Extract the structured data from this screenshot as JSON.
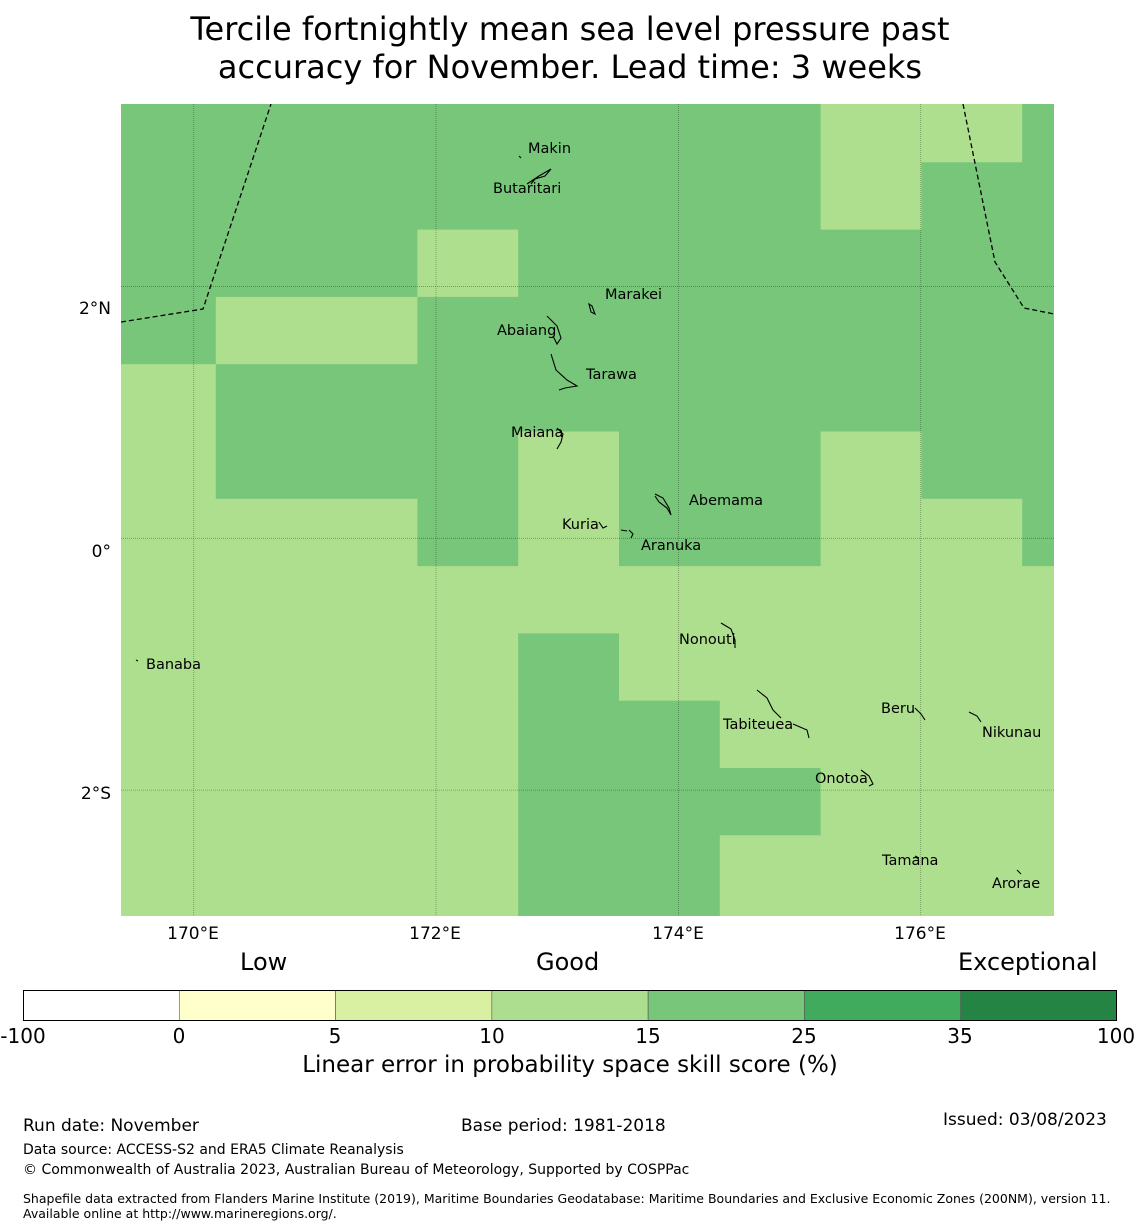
{
  "title": {
    "line1": "Tercile fortnightly mean sea level pressure past",
    "line2": "accuracy for November. Lead time: 3 weeks"
  },
  "map": {
    "lon_range": [
      169.4,
      177.1
    ],
    "lat_range": [
      -3.0,
      3.45
    ],
    "grid_step_deg": 0.83,
    "gridlines_lon": [
      170,
      172,
      174,
      176
    ],
    "gridlines_lat": [
      2,
      0,
      -2
    ],
    "x_tick_labels": [
      "170°E",
      "172°E",
      "174°E",
      "176°E"
    ],
    "y_tick_labels": [
      "2°N",
      "0°",
      "2°S"
    ],
    "colors": {
      "class_10_15": "#addf8e",
      "class_15_25": "#78c67a",
      "line": "#000000"
    },
    "cells_note": "1 = 15-25 skill class, 0 = 10-15 skill class; rows from north to south",
    "cells": [
      [
        1,
        1,
        1,
        1,
        1,
        1,
        1,
        0,
        0,
        1
      ],
      [
        1,
        1,
        1,
        1,
        1,
        1,
        1,
        0,
        1,
        1
      ],
      [
        1,
        1,
        1,
        0,
        1,
        1,
        1,
        1,
        1,
        1
      ],
      [
        1,
        0,
        0,
        1,
        1,
        1,
        1,
        1,
        1,
        1
      ],
      [
        0,
        1,
        1,
        1,
        1,
        1,
        1,
        1,
        1,
        1
      ],
      [
        0,
        1,
        1,
        1,
        0,
        1,
        1,
        0,
        1,
        1
      ],
      [
        0,
        0,
        0,
        1,
        0,
        1,
        1,
        0,
        0,
        1
      ],
      [
        0,
        0,
        0,
        0,
        0,
        0,
        0,
        0,
        0,
        0
      ],
      [
        0,
        0,
        0,
        0,
        1,
        0,
        0,
        0,
        0,
        0
      ],
      [
        0,
        0,
        0,
        0,
        1,
        1,
        0,
        0,
        0,
        0
      ],
      [
        0,
        0,
        0,
        0,
        1,
        1,
        1,
        0,
        0,
        0
      ],
      [
        0,
        0,
        0,
        0,
        1,
        1,
        0,
        0,
        0,
        0
      ],
      [
        0,
        0,
        0,
        0,
        1,
        1,
        0,
        0,
        0,
        0
      ]
    ],
    "places": [
      {
        "name": "Makin",
        "lon": 173.1,
        "lat": 3.18
      },
      {
        "name": "Butaritari",
        "lon": 172.95,
        "lat": 2.9
      },
      {
        "name": "Marakei",
        "lon": 173.4,
        "lat": 2.0
      },
      {
        "name": "Abaiang",
        "lon": 172.9,
        "lat": 1.85
      },
      {
        "name": "Tarawa",
        "lon": 173.05,
        "lat": 1.45
      },
      {
        "name": "Maiana",
        "lon": 173.0,
        "lat": 0.95
      },
      {
        "name": "Abemama",
        "lon": 173.85,
        "lat": 0.4
      },
      {
        "name": "Kuria",
        "lon": 173.4,
        "lat": 0.25
      },
      {
        "name": "Aranuka",
        "lon": 173.65,
        "lat": 0.15
      },
      {
        "name": "Banaba",
        "lon": 169.53,
        "lat": -0.87
      },
      {
        "name": "Nonouti",
        "lon": 174.4,
        "lat": -0.65
      },
      {
        "name": "Beru",
        "lon": 176.0,
        "lat": -1.33
      },
      {
        "name": "Tabiteuea",
        "lon": 175.0,
        "lat": -1.4
      },
      {
        "name": "Nikunau",
        "lon": 176.45,
        "lat": -1.38
      },
      {
        "name": "Onotoa",
        "lon": 175.55,
        "lat": -1.8
      },
      {
        "name": "Tamana",
        "lon": 175.98,
        "lat": -2.5
      },
      {
        "name": "Arorae",
        "lon": 176.82,
        "lat": -2.65
      }
    ]
  },
  "legend": {
    "category_labels": [
      "Low",
      "Good",
      "Exceptional"
    ],
    "bins": [
      {
        "from": -100,
        "to": 0,
        "color": "#ffffff"
      },
      {
        "from": 0,
        "to": 5,
        "color": "#ffffcc"
      },
      {
        "from": 5,
        "to": 10,
        "color": "#d9f0a3"
      },
      {
        "from": 10,
        "to": 15,
        "color": "#addd8e"
      },
      {
        "from": 15,
        "to": 25,
        "color": "#78c679"
      },
      {
        "from": 25,
        "to": 35,
        "color": "#41ab5d"
      },
      {
        "from": 35,
        "to": 100,
        "color": "#238443"
      }
    ],
    "tick_labels": [
      "-100",
      "0",
      "5",
      "10",
      "15",
      "25",
      "35",
      "100"
    ],
    "title": "Linear error in probability space skill score (%)"
  },
  "footer": {
    "run_date": "Run date: November",
    "base_period": "Base period: 1981-2018",
    "issued": "Issued: 03/08/2023",
    "data_source": "Data source: ACCESS-S2 and ERA5 Climate Reanalysis",
    "copyright": "© Commonwealth of Australia 2023, Australian Bureau of Meteorology, Supported by COSPPac",
    "shapefile": "Shapefile data extracted from Flanders Marine Institute (2019), Maritime Boundaries Geodatabase: Maritime Boundaries and Exclusive Economic Zones (200NM), version 11. Available online at http://www.marineregions.org/."
  }
}
